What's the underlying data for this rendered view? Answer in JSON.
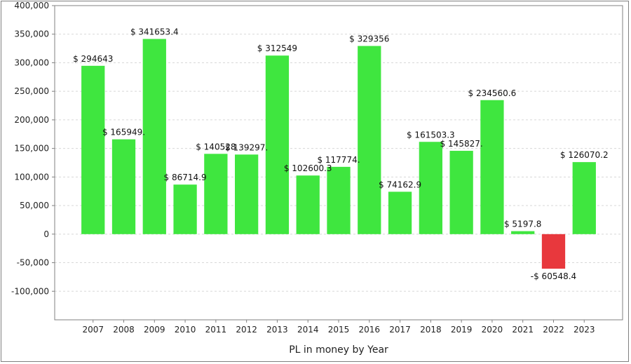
{
  "chart_data": {
    "type": "bar",
    "xlabel": "PL in money by Year",
    "ylabel": "",
    "title": "",
    "ylim": [
      -150000,
      400000
    ],
    "yticks": [
      400000,
      350000,
      300000,
      250000,
      200000,
      150000,
      100000,
      50000,
      0,
      -50000,
      -100000
    ],
    "ytick_labels": [
      "400,000",
      "350,000",
      "300,000",
      "250,000",
      "200,000",
      "150,000",
      "100,000",
      "50,000",
      "0",
      "-50,000",
      "-100,000"
    ],
    "categories": [
      "2007",
      "2008",
      "2009",
      "2010",
      "2011",
      "2012",
      "2013",
      "2014",
      "2015",
      "2016",
      "2017",
      "2018",
      "2019",
      "2020",
      "2021",
      "2022",
      "2023"
    ],
    "values": [
      294643,
      165949,
      341653.4,
      86714.9,
      140528,
      139297,
      312549,
      102600.3,
      117774,
      329356,
      74162.9,
      161503.3,
      145827,
      234560.6,
      5197.8,
      -60548.4,
      126070.2
    ],
    "data_labels": [
      "$ 294643",
      "$ 165949.",
      "$ 341653.4",
      "$ 86714.9",
      "$ 140528",
      "$ 139297.",
      "$ 312549",
      "$ 102600.3",
      "$ 117774.",
      "$ 329356",
      "$ 74162.9",
      "$ 161503.3",
      "$ 145827.",
      "$ 234560.6",
      "$ 5197.8",
      "-$ 60548.4",
      "$ 126070.2"
    ],
    "grid": true,
    "colors": {
      "positive": "#3fe63f",
      "negative": "#e8383d",
      "grid": "#d8d8d8",
      "axis": "#808080"
    }
  }
}
